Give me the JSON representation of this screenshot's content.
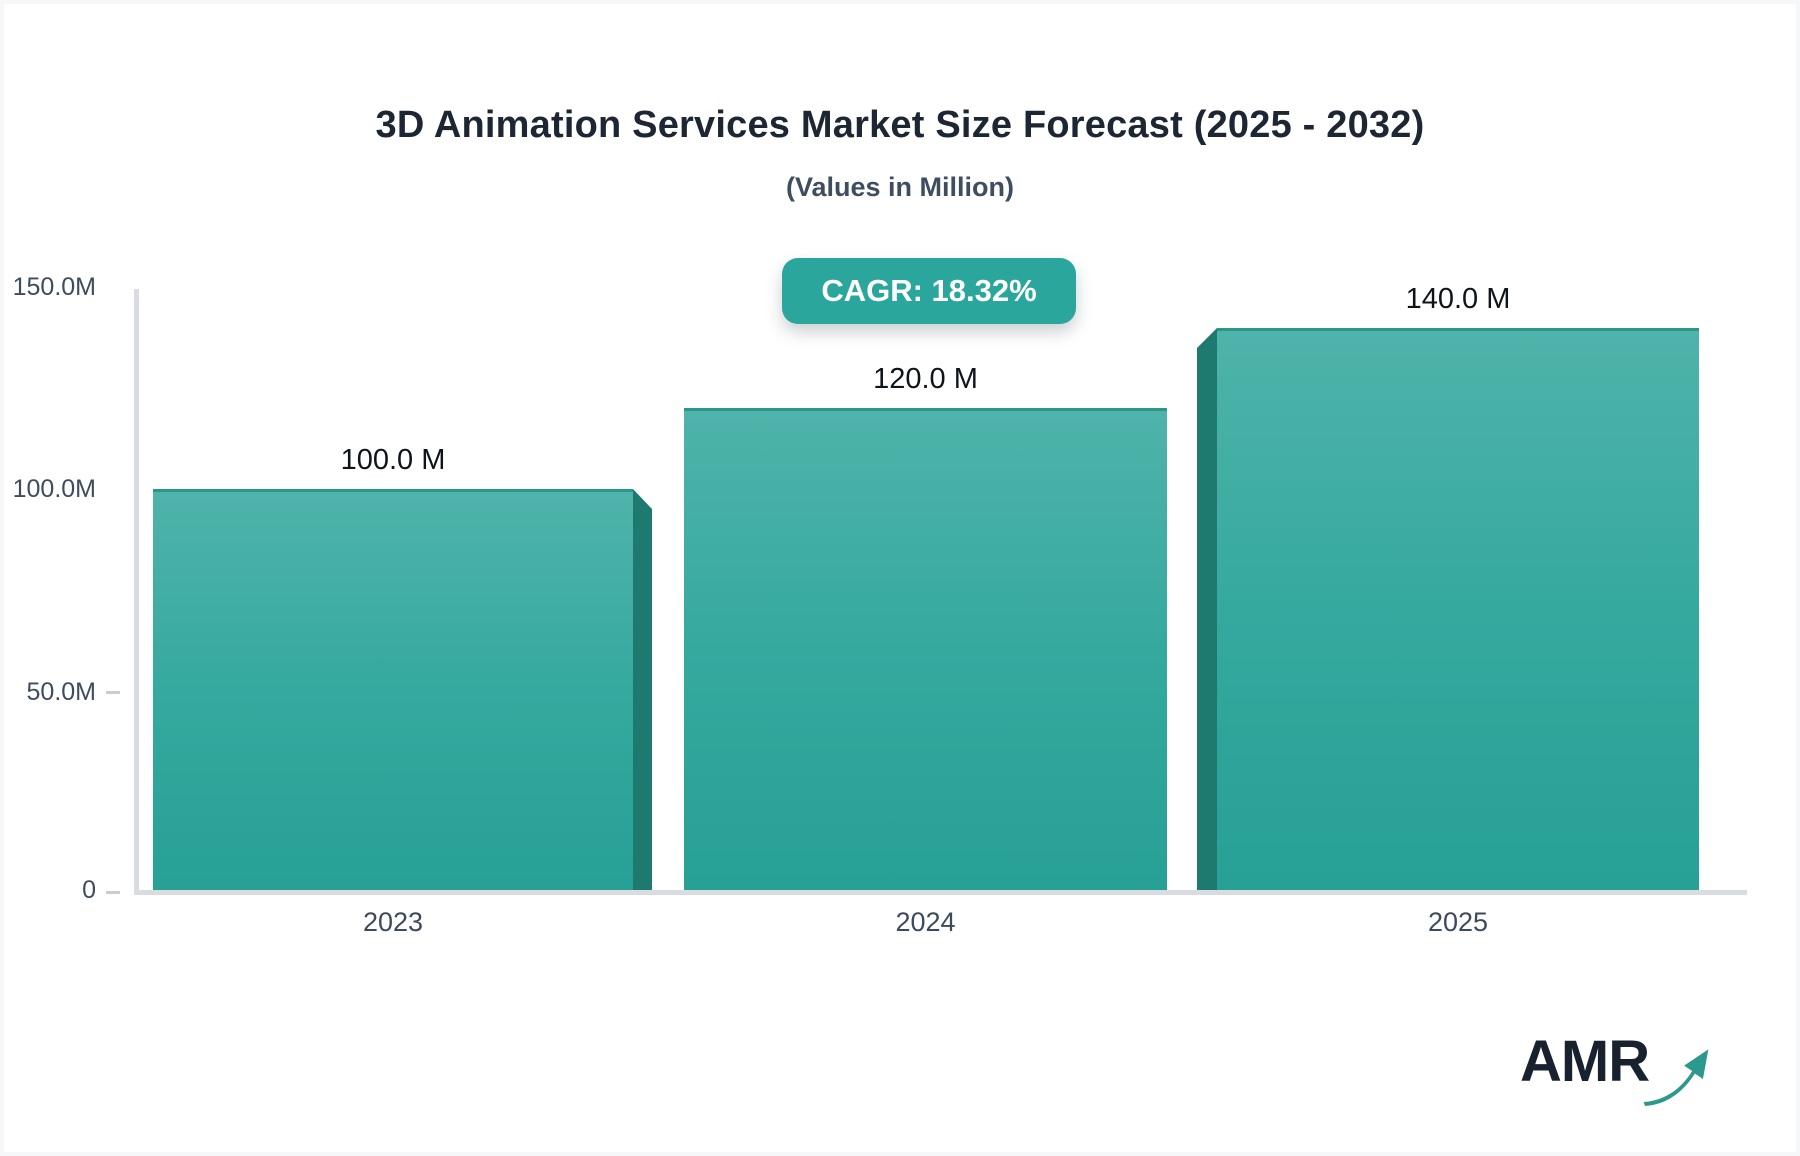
{
  "page": {
    "title": "3D Animation Services Market Size Forecast (2025 - 2032)",
    "subtitle": "(Values in Million)",
    "cagr_badge": "CAGR: 18.32%",
    "logo_text": "AMR"
  },
  "chart_data": {
    "type": "bar",
    "title": "3D Animation Services Market Size Forecast (2025 - 2032)",
    "subtitle": "(Values in Million)",
    "unit": "Million",
    "cagr_label": "CAGR: 18.32%",
    "categories": [
      "2023",
      "2024",
      "2025"
    ],
    "values": [
      100.0,
      120.0,
      140.0
    ],
    "value_labels": [
      "100.0 M",
      "120.0 M",
      "140.0 M"
    ],
    "yticks": [
      "150.0M",
      "100.0M",
      "50.0M",
      "0"
    ],
    "ylim": [
      0,
      150
    ],
    "xlabel": "",
    "ylabel": "",
    "grid": "off",
    "legend": "none",
    "colors": {
      "bar_gradient_top": "#4FB3AA",
      "bar_gradient_bottom": "#27A095",
      "bar_side_face": "#1E7A6E",
      "accent_badge": "#2BA69C",
      "axis_line": "#d8dbe0",
      "label_text": "#3d4c5e",
      "logo_arrow": "#2D988E"
    }
  }
}
